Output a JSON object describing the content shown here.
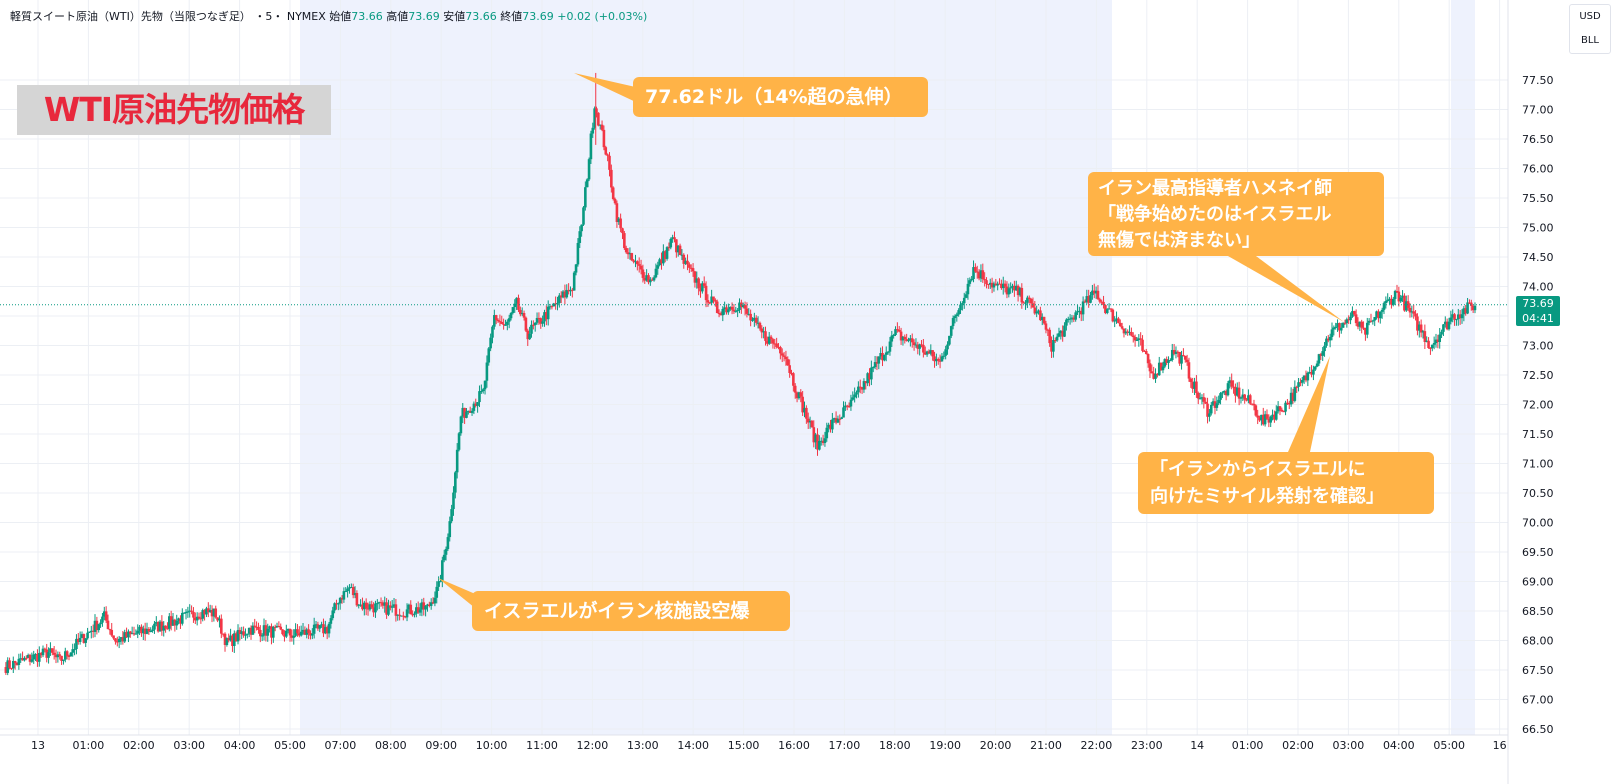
{
  "header": {
    "symbol_name": "軽質スイート原油（WTI）先物（当限つなぎ足）",
    "interval": "・5・",
    "exchange": "NYMEX",
    "open_label": "始値",
    "open": "73.66",
    "high_label": "高値",
    "high": "73.69",
    "low_label": "安値",
    "low": "73.66",
    "close_label": "終値",
    "close": "73.69",
    "change": "+0.02 (+0.03%)"
  },
  "unit_box": {
    "currency": "USD",
    "unit": "BLL"
  },
  "overlay_title": "WTI原油先物価格",
  "price_tag": {
    "price": "73.69",
    "countdown": "04:41"
  },
  "annotations": {
    "peak": "77.62ドル（14%超の急伸）",
    "strike": "イスラエルがイラン核施設空爆",
    "khamenei": [
      "イラン最高指導者ハメネイ師",
      "「戦争始めたのはイスラエル",
      "無傷では済まない」"
    ],
    "missile": [
      "「イランからイスラエルに",
      "向けたミサイル発射を確認」"
    ]
  },
  "colors": {
    "up": "#089981",
    "down": "#f23645",
    "callout": "#ffb347",
    "title_text": "#e8283c",
    "session_shade": "#eef2fd",
    "price_line": "#089981"
  },
  "chart_data": {
    "type": "candlestick",
    "title": "WTI原油先物価格",
    "y_axis": {
      "ylim": [
        66.5,
        77.9
      ],
      "ticks": [
        "66.50",
        "67.00",
        "67.50",
        "68.00",
        "68.50",
        "69.00",
        "69.50",
        "70.00",
        "70.50",
        "71.00",
        "71.50",
        "72.00",
        "72.50",
        "73.00",
        "73.50",
        "74.00",
        "74.50",
        "75.00",
        "75.50",
        "76.00",
        "76.50",
        "77.00",
        "77.50"
      ]
    },
    "x_axis": {
      "ticks": [
        "13",
        "01:00",
        "02:00",
        "03:00",
        "04:00",
        "05:00",
        "07:00",
        "08:00",
        "09:00",
        "10:00",
        "11:00",
        "12:00",
        "13:00",
        "14:00",
        "15:00",
        "16:00",
        "17:00",
        "18:00",
        "19:00",
        "20:00",
        "21:00",
        "22:00",
        "23:00",
        "14",
        "01:00",
        "02:00",
        "03:00",
        "04:00",
        "05:00",
        "16"
      ]
    },
    "grid": true,
    "shaded_sessions": [
      [
        "05:00",
        "22:00"
      ],
      [
        "05:00",
        "05:30"
      ]
    ],
    "current_price": 73.69,
    "path": [
      [
        0,
        67.55
      ],
      [
        4,
        67.8
      ],
      [
        5,
        67.65
      ],
      [
        9,
        68.4
      ],
      [
        10,
        68.0
      ],
      [
        18,
        68.5
      ],
      [
        19,
        68.45
      ],
      [
        20,
        67.95
      ],
      [
        22,
        68.2
      ],
      [
        26,
        68.1
      ],
      [
        29,
        68.2
      ],
      [
        30,
        68.7
      ],
      [
        31,
        68.9
      ],
      [
        32,
        68.6
      ],
      [
        36,
        68.5
      ],
      [
        38,
        68.55
      ],
      [
        39,
        68.9
      ],
      [
        40,
        70.0
      ],
      [
        41,
        71.8
      ],
      [
        43,
        72.2
      ],
      [
        44,
        73.5
      ],
      [
        45,
        73.3
      ],
      [
        46,
        73.7
      ],
      [
        47,
        73.2
      ],
      [
        49,
        73.6
      ],
      [
        51,
        74.0
      ],
      [
        52,
        75.3
      ],
      [
        53,
        77.1
      ],
      [
        54,
        76.3
      ],
      [
        55,
        75.2
      ],
      [
        56,
        74.5
      ],
      [
        58,
        74.1
      ],
      [
        60,
        74.8
      ],
      [
        61,
        74.4
      ],
      [
        64,
        73.6
      ],
      [
        66,
        73.7
      ],
      [
        68,
        73.2
      ],
      [
        70,
        72.9
      ],
      [
        71,
        72.3
      ],
      [
        73,
        71.3
      ],
      [
        74,
        71.6
      ],
      [
        76,
        72.0
      ],
      [
        78,
        72.6
      ],
      [
        80,
        73.2
      ],
      [
        82,
        73.0
      ],
      [
        84,
        72.7
      ],
      [
        85,
        73.3
      ],
      [
        87,
        74.3
      ],
      [
        89,
        74.0
      ],
      [
        91,
        73.9
      ],
      [
        93,
        73.5
      ],
      [
        94,
        73.0
      ],
      [
        96,
        73.5
      ],
      [
        98,
        73.9
      ],
      [
        99,
        73.6
      ],
      [
        101,
        73.2
      ],
      [
        102,
        73.0
      ],
      [
        103,
        72.5
      ],
      [
        105,
        72.9
      ],
      [
        106,
        72.7
      ],
      [
        107,
        72.2
      ],
      [
        108,
        71.9
      ],
      [
        110,
        72.3
      ],
      [
        112,
        72.0
      ],
      [
        113,
        71.7
      ],
      [
        115,
        72.0
      ],
      [
        117,
        72.5
      ],
      [
        119,
        73.2
      ],
      [
        121,
        73.5
      ],
      [
        122,
        73.2
      ],
      [
        124,
        73.7
      ],
      [
        125,
        73.9
      ],
      [
        127,
        73.3
      ],
      [
        128,
        73.0
      ],
      [
        130,
        73.5
      ],
      [
        132,
        73.69
      ]
    ]
  }
}
